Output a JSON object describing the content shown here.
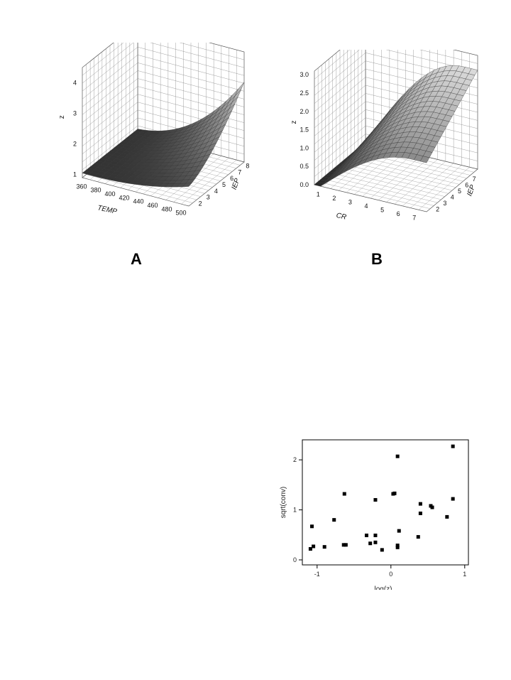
{
  "panels": [
    {
      "label": "A",
      "chart_data": {
        "type": "surface3d",
        "xlabel": "TEMP",
        "ylabel": "IEP",
        "zlabel": "z",
        "x_ticks": [
          "360",
          "380",
          "400",
          "420",
          "440",
          "460",
          "480",
          "500"
        ],
        "y_ticks": [
          "2",
          "3",
          "4",
          "5",
          "6",
          "7",
          "8"
        ],
        "z_ticks": [
          "1",
          "2",
          "3",
          "4"
        ],
        "xlim": [
          355,
          505
        ],
        "ylim": [
          1.5,
          8.5
        ],
        "zlim": [
          0.9,
          4.5
        ],
        "colors": {
          "low": "#2a2a2a",
          "mid": "#9a9a9a",
          "high": "#f2f2f2"
        }
      }
    },
    {
      "label": "B",
      "chart_data": {
        "type": "surface3d",
        "xlabel": "CR",
        "ylabel": "IEP",
        "zlabel": "z",
        "x_ticks": [
          "1",
          "2",
          "3",
          "4",
          "5",
          "6",
          "7"
        ],
        "y_ticks": [
          "2",
          "3",
          "4",
          "5",
          "6",
          "7",
          "8"
        ],
        "z_ticks": [
          "0.0",
          "0.5",
          "1.0",
          "1.5",
          "2.0",
          "2.5",
          "3.0"
        ],
        "xlim": [
          0.5,
          7.5
        ],
        "ylim": [
          1.5,
          8.5
        ],
        "zlim": [
          0,
          3.1
        ],
        "colors": {
          "low": "#2a2a2a",
          "mid": "#9a9a9a",
          "high": "#f2f2f2"
        }
      }
    }
  ],
  "scatter": {
    "chart_data": {
      "type": "scatter",
      "xlabel": "log(z)",
      "ylabel": "sqrt(conv)",
      "x_ticks": [
        "-1",
        "0",
        "1"
      ],
      "y_ticks": [
        "0",
        "1",
        "2"
      ],
      "xlim": [
        -1.2,
        1.05
      ],
      "ylim": [
        -0.1,
        2.4
      ],
      "points": [
        {
          "x": -1.09,
          "y": 0.22
        },
        {
          "x": -1.07,
          "y": 0.67
        },
        {
          "x": -1.05,
          "y": 0.27
        },
        {
          "x": -0.9,
          "y": 0.26
        },
        {
          "x": -0.77,
          "y": 0.8
        },
        {
          "x": -0.63,
          "y": 1.32
        },
        {
          "x": -0.64,
          "y": 0.3
        },
        {
          "x": -0.61,
          "y": 0.3
        },
        {
          "x": -0.33,
          "y": 0.49
        },
        {
          "x": -0.28,
          "y": 0.33
        },
        {
          "x": -0.21,
          "y": 1.2
        },
        {
          "x": -0.21,
          "y": 0.49
        },
        {
          "x": -0.21,
          "y": 0.35
        },
        {
          "x": -0.12,
          "y": 0.2
        },
        {
          "x": 0.03,
          "y": 1.32
        },
        {
          "x": 0.05,
          "y": 1.33
        },
        {
          "x": 0.09,
          "y": 2.07
        },
        {
          "x": 0.09,
          "y": 0.29
        },
        {
          "x": 0.09,
          "y": 0.25
        },
        {
          "x": 0.11,
          "y": 0.58
        },
        {
          "x": 0.37,
          "y": 0.46
        },
        {
          "x": 0.4,
          "y": 1.12
        },
        {
          "x": 0.4,
          "y": 0.93
        },
        {
          "x": 0.54,
          "y": 1.08
        },
        {
          "x": 0.56,
          "y": 1.05
        },
        {
          "x": 0.76,
          "y": 0.86
        },
        {
          "x": 0.84,
          "y": 2.27
        },
        {
          "x": 0.84,
          "y": 1.22
        }
      ]
    }
  }
}
